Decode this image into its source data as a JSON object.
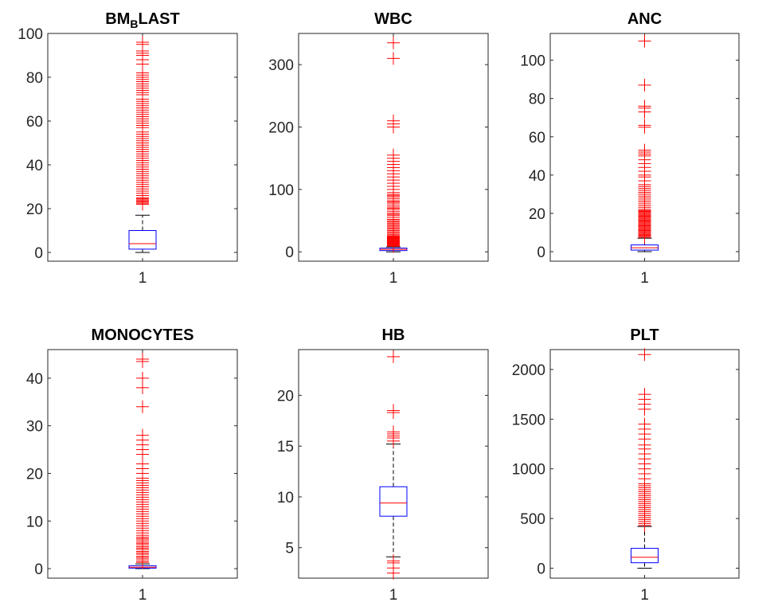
{
  "chart_data": [
    {
      "type": "box",
      "title": "BMBLAST",
      "title_main_1": "BM",
      "title_sub": "B",
      "title_main_2": "LAST",
      "xtick": "1",
      "ylim": [
        -4,
        100
      ],
      "yticks": [
        0,
        20,
        40,
        60,
        80,
        100
      ],
      "ytick_labels": [
        "0",
        "20",
        "40",
        "60",
        "80",
        "100"
      ],
      "box": {
        "whisker_low": 0,
        "q1": 1.5,
        "median": 4,
        "q3": 10,
        "whisker_high": 17
      },
      "outliers": [
        22,
        22.5,
        23,
        23.5,
        24,
        24.5,
        25,
        26,
        27,
        28,
        29,
        30,
        31,
        32,
        33,
        34,
        35,
        36,
        37,
        38,
        39,
        40,
        41,
        42,
        43,
        44,
        45,
        46,
        47,
        48,
        49,
        50,
        51,
        52,
        53,
        54,
        55,
        57,
        58,
        59,
        60,
        61,
        62,
        63,
        64,
        65,
        66,
        67,
        68,
        69,
        70,
        72,
        73,
        74,
        75,
        76,
        77,
        78,
        79,
        80,
        81,
        82,
        86,
        88,
        90,
        91,
        92,
        95,
        96
      ]
    },
    {
      "type": "box",
      "title": "WBC",
      "xtick": "1",
      "ylim": [
        -15,
        350
      ],
      "yticks": [
        0,
        100,
        200,
        300
      ],
      "ytick_labels": [
        "0",
        "100",
        "200",
        "300"
      ],
      "box": {
        "whisker_low": 0,
        "q1": 2,
        "median": 4,
        "q3": 6,
        "whisker_high": 8
      },
      "outliers": [
        9,
        10,
        11,
        12,
        13,
        14,
        15,
        16,
        17,
        18,
        19,
        20,
        21,
        22,
        23,
        24,
        25,
        26,
        28,
        30,
        32,
        34,
        36,
        38,
        40,
        42,
        44,
        46,
        48,
        50,
        52,
        55,
        58,
        60,
        62,
        65,
        68,
        70,
        72,
        75,
        78,
        80,
        82,
        85,
        88,
        90,
        92,
        95,
        100,
        105,
        110,
        115,
        120,
        125,
        130,
        135,
        140,
        145,
        150,
        155,
        200,
        205,
        210,
        310,
        335
      ]
    },
    {
      "type": "box",
      "title": "ANC",
      "xtick": "1",
      "ylim": [
        -5,
        114
      ],
      "yticks": [
        0,
        20,
        40,
        60,
        80,
        100
      ],
      "ytick_labels": [
        "0",
        "20",
        "40",
        "60",
        "80",
        "100"
      ],
      "box": {
        "whisker_low": 0,
        "q1": 0.8,
        "median": 2,
        "q3": 3.5,
        "whisker_high": 7
      },
      "outliers": [
        7.5,
        8,
        8.5,
        9,
        9.5,
        10,
        10.5,
        11,
        11.5,
        12,
        12.5,
        13,
        13.5,
        14,
        14.5,
        15,
        15.5,
        16,
        16.5,
        17,
        17.5,
        18,
        18.5,
        19,
        19.5,
        20,
        20.5,
        21,
        21.5,
        22,
        23,
        24,
        25,
        26,
        27,
        28,
        29,
        30,
        31,
        32,
        33,
        34,
        35,
        37,
        39,
        40,
        42,
        44,
        46,
        48,
        50,
        51,
        52,
        53,
        65,
        66,
        73,
        75,
        76,
        87,
        110
      ]
    },
    {
      "type": "box",
      "title": "MONOCYTES",
      "xtick": "1",
      "ylim": [
        -2,
        46
      ],
      "yticks": [
        0,
        10,
        20,
        30,
        40
      ],
      "ytick_labels": [
        "0",
        "10",
        "20",
        "30",
        "40"
      ],
      "box": {
        "whisker_low": 0,
        "q1": 0.1,
        "median": 0.3,
        "q3": 0.6,
        "whisker_high": 1
      },
      "outliers": [
        1.3,
        1.6,
        2,
        2.3,
        2.6,
        3,
        3.3,
        3.6,
        4,
        4.3,
        4.6,
        5,
        5.3,
        5.6,
        6,
        6.3,
        6.6,
        7,
        7.5,
        8,
        8.5,
        9,
        9.5,
        10,
        10.5,
        11,
        11.5,
        12,
        12.5,
        13,
        13.5,
        14,
        14.5,
        15,
        15.5,
        16,
        16.5,
        17,
        17.5,
        18,
        18.5,
        19,
        20,
        21,
        22,
        24,
        25,
        26,
        27,
        28,
        34,
        38,
        40,
        43.5,
        44
      ]
    },
    {
      "type": "box",
      "title": "HB",
      "xtick": "1",
      "ylim": [
        2,
        24.5
      ],
      "yticks": [
        5,
        10,
        15,
        20
      ],
      "ytick_labels": [
        "5",
        "10",
        "15",
        "20"
      ],
      "box": {
        "whisker_low": 4.1,
        "q1": 8.1,
        "median": 9.4,
        "q3": 11,
        "whisker_high": 15.2
      },
      "outliers": [
        2.5,
        3,
        3.5,
        3.7,
        15.5,
        15.8,
        16,
        16.2,
        16.4,
        18.3,
        18.5,
        23.8
      ]
    },
    {
      "type": "box",
      "title": "PLT",
      "xtick": "1",
      "ylim": [
        -100,
        2200
      ],
      "yticks": [
        0,
        500,
        1000,
        1500,
        2000
      ],
      "ytick_labels": [
        "0",
        "500",
        "1000",
        "1500",
        "2000"
      ],
      "box": {
        "whisker_low": 0,
        "q1": 55,
        "median": 110,
        "q3": 200,
        "whisker_high": 420
      },
      "outliers": [
        430,
        450,
        470,
        490,
        510,
        530,
        550,
        570,
        590,
        610,
        630,
        650,
        670,
        690,
        710,
        730,
        750,
        770,
        790,
        810,
        830,
        850,
        900,
        950,
        1000,
        1050,
        1100,
        1150,
        1200,
        1240,
        1300,
        1350,
        1400,
        1450,
        1600,
        1650,
        1700,
        1750,
        2150
      ]
    }
  ]
}
